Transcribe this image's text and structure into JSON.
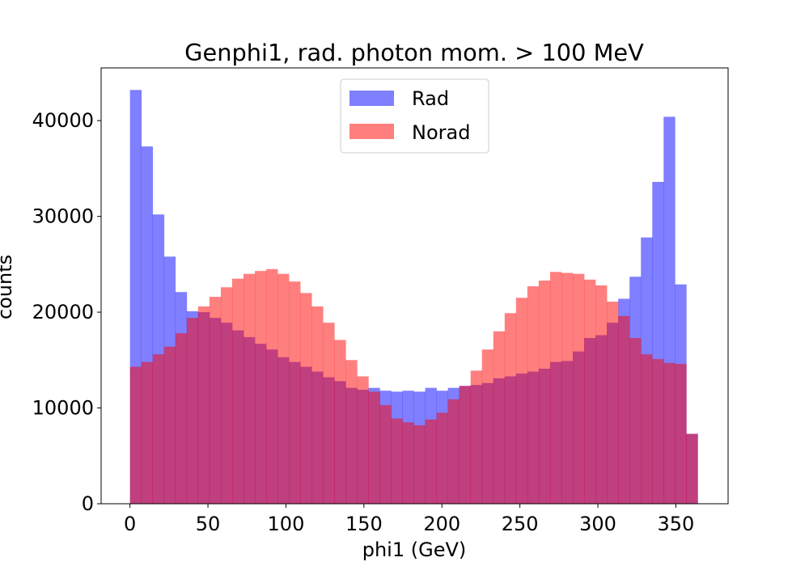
{
  "chart_data": {
    "type": "bar",
    "title": "Genphi1, rad. photon mom. > 100 MeV",
    "xlabel": "phi1 (GeV)",
    "ylabel": "counts",
    "xlim": [
      -18.5,
      383.5
    ],
    "ylim": [
      0,
      45500
    ],
    "xticks": [
      0,
      50,
      100,
      150,
      200,
      250,
      300,
      350
    ],
    "yticks": [
      0,
      10000,
      20000,
      30000,
      40000
    ],
    "bin_start": 0,
    "bin_width": 7.28,
    "legend_position": "upper center",
    "grid": false,
    "series": [
      {
        "name": "Rad",
        "color": "#0000ff",
        "alpha": 0.5,
        "values": [
          43200,
          37300,
          30200,
          25800,
          22100,
          20100,
          20000,
          19400,
          18900,
          18100,
          17400,
          16700,
          16100,
          15300,
          14800,
          14300,
          13800,
          13200,
          12800,
          12100,
          11900,
          12100,
          11800,
          11700,
          11800,
          11700,
          12100,
          11800,
          12100,
          12300,
          12400,
          12600,
          13100,
          13300,
          13600,
          13800,
          14100,
          14800,
          14900,
          15900,
          17300,
          17600,
          18900,
          21400,
          23700,
          27800,
          33600,
          40400,
          22900,
          7300
        ]
      },
      {
        "name": "Norad",
        "color": "#ff0000",
        "alpha": 0.5,
        "values": [
          14300,
          14800,
          15600,
          16400,
          17800,
          19400,
          20600,
          21600,
          22600,
          23500,
          24000,
          24300,
          24500,
          24000,
          23200,
          22000,
          20600,
          18900,
          17100,
          15000,
          13300,
          11700,
          10300,
          8900,
          8500,
          8200,
          8800,
          9500,
          10900,
          12300,
          13900,
          16100,
          18000,
          19900,
          21500,
          22700,
          23300,
          24200,
          24100,
          24000,
          23400,
          22800,
          21100,
          19600,
          17300,
          15600,
          15100,
          14700,
          14600,
          7300
        ]
      }
    ]
  }
}
